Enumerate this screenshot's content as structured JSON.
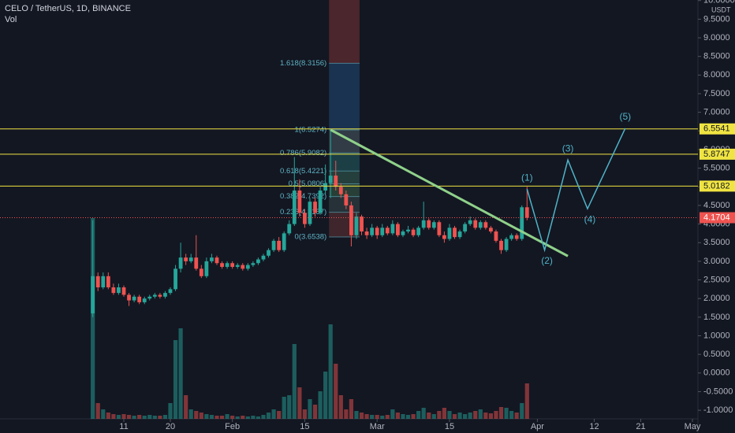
{
  "chart_data": {
    "type": "candlestick",
    "title": "CELO / TetherUS, 1D, BINANCE",
    "subtitle": "Vol",
    "y_axis_label": "USDT",
    "xlim": [
      -13.95,
      121.06
    ],
    "ylim": [
      -1.23,
      10.015
    ],
    "y2lim": [
      0,
      532
    ],
    "grid": false,
    "up_color": "#26a69a",
    "down_color": "#ef5350",
    "xticks": [
      {
        "value": 10,
        "label": "11"
      },
      {
        "value": 19,
        "label": "20"
      },
      {
        "value": 31,
        "label": "Feb"
      },
      {
        "value": 45,
        "label": "15"
      },
      {
        "value": 59,
        "label": "Mar"
      },
      {
        "value": 73,
        "label": "15"
      },
      {
        "value": 90,
        "label": "Apr"
      },
      {
        "value": 101,
        "label": "12"
      },
      {
        "value": 110,
        "label": "21"
      },
      {
        "value": 120,
        "label": "May"
      }
    ],
    "yticks": [
      {
        "value": -1,
        "label": "-1.0000"
      },
      {
        "value": -0.5,
        "label": "-0.5000"
      },
      {
        "value": 0,
        "label": "0.0000"
      },
      {
        "value": 0.5,
        "label": "0.5000"
      },
      {
        "value": 1,
        "label": "1.0000"
      },
      {
        "value": 1.5,
        "label": "1.5000"
      },
      {
        "value": 2,
        "label": "2.0000"
      },
      {
        "value": 2.5,
        "label": "2.5000"
      },
      {
        "value": 3,
        "label": "3.0000"
      },
      {
        "value": 3.5,
        "label": "3.5000"
      },
      {
        "value": 4,
        "label": "4.0000"
      },
      {
        "value": 4.5,
        "label": "4.5000"
      },
      {
        "value": 5,
        "label": "5.0000"
      },
      {
        "value": 5.5,
        "label": "5.5000"
      },
      {
        "value": 6,
        "label": "6.0000"
      },
      {
        "value": 6.5,
        "label": "6.5000"
      },
      {
        "value": 7,
        "label": "7.0000"
      },
      {
        "value": 7.5,
        "label": "7.5000"
      },
      {
        "value": 8,
        "label": "8.0000"
      },
      {
        "value": 8.5,
        "label": "8.5000"
      },
      {
        "value": 9,
        "label": "9.0000"
      },
      {
        "value": 9.5,
        "label": "9.5000"
      },
      {
        "value": 10,
        "label": "10.0000"
      }
    ],
    "x": [
      4,
      5,
      6,
      7,
      8,
      9,
      10,
      11,
      12,
      13,
      14,
      15,
      16,
      17,
      18,
      19,
      20,
      21,
      22,
      23,
      24,
      25,
      26,
      27,
      28,
      29,
      30,
      31,
      32,
      33,
      34,
      35,
      36,
      37,
      38,
      39,
      40,
      41,
      42,
      43,
      44,
      45,
      46,
      47,
      48,
      49,
      50,
      51,
      52,
      53,
      54,
      55,
      56,
      57,
      58,
      59,
      60,
      61,
      62,
      63,
      64,
      65,
      66,
      67,
      68,
      69,
      70,
      71,
      72,
      73,
      74,
      75,
      76,
      77,
      78,
      79,
      80,
      81,
      82,
      83,
      84,
      85,
      86,
      87,
      88
    ],
    "open": [
      1.6,
      2.6,
      2.3,
      2.6,
      2.3,
      2.15,
      2.3,
      2.1,
      1.95,
      2.05,
      1.9,
      2.0,
      2.05,
      2.1,
      2.05,
      2.15,
      2.25,
      2.8,
      3.1,
      3.0,
      3.1,
      2.8,
      2.6,
      3.0,
      3.1,
      2.95,
      2.85,
      2.95,
      2.85,
      2.9,
      2.8,
      2.9,
      2.95,
      3.05,
      3.15,
      3.3,
      3.55,
      3.3,
      3.75,
      4.0,
      4.9,
      4.3,
      4.0,
      4.6,
      4.3,
      4.9,
      5.1,
      5.3,
      5.0,
      4.8,
      4.5,
      3.7,
      4.2,
      3.8,
      3.7,
      3.9,
      3.7,
      3.9,
      3.75,
      4.0,
      3.7,
      3.8,
      3.85,
      3.7,
      3.9,
      4.1,
      3.9,
      4.05,
      3.7,
      3.6,
      3.9,
      3.65,
      3.8,
      4.0,
      4.1,
      3.9,
      4.05,
      3.9,
      3.8,
      3.55,
      3.3,
      3.6,
      3.7,
      3.6,
      4.45
    ],
    "high": [
      4.1,
      2.7,
      2.7,
      2.7,
      2.4,
      2.4,
      2.35,
      2.15,
      2.1,
      2.1,
      2.05,
      2.1,
      2.15,
      2.15,
      2.2,
      2.3,
      2.9,
      3.5,
      3.2,
      3.2,
      3.7,
      2.9,
      3.1,
      3.2,
      3.15,
      3.0,
      3.0,
      3.0,
      2.95,
      2.95,
      2.95,
      3.0,
      3.1,
      3.2,
      3.35,
      3.6,
      3.65,
      3.8,
      4.1,
      5.8,
      5.2,
      4.4,
      4.7,
      4.7,
      5.0,
      5.6,
      6.53,
      5.7,
      5.1,
      4.9,
      4.6,
      4.3,
      4.25,
      3.9,
      4.0,
      3.95,
      4.0,
      3.95,
      4.1,
      4.05,
      3.85,
      3.95,
      3.9,
      3.95,
      4.6,
      4.15,
      4.1,
      4.1,
      3.8,
      4.0,
      3.95,
      3.85,
      4.05,
      4.2,
      4.15,
      4.1,
      4.1,
      3.95,
      3.85,
      3.6,
      3.65,
      3.75,
      3.75,
      4.5,
      5.0
    ],
    "low": [
      1.5,
      2.2,
      2.25,
      2.25,
      2.1,
      2.1,
      2.05,
      1.8,
      1.9,
      1.85,
      1.85,
      1.95,
      2.0,
      2.0,
      2.0,
      2.1,
      2.2,
      2.7,
      2.9,
      2.95,
      2.75,
      2.55,
      2.55,
      2.95,
      2.9,
      2.8,
      2.8,
      2.8,
      2.8,
      2.75,
      2.75,
      2.85,
      2.9,
      3.0,
      3.1,
      3.25,
      3.25,
      3.25,
      3.7,
      3.95,
      4.2,
      3.9,
      3.95,
      4.2,
      4.25,
      4.8,
      4.7,
      4.9,
      4.7,
      4.4,
      3.4,
      3.6,
      3.7,
      3.6,
      3.65,
      3.6,
      3.65,
      3.7,
      3.7,
      3.65,
      3.65,
      3.75,
      3.65,
      3.65,
      3.85,
      3.85,
      3.85,
      3.65,
      3.5,
      3.55,
      3.6,
      3.6,
      3.75,
      3.95,
      3.85,
      3.85,
      3.85,
      3.75,
      3.5,
      3.2,
      3.25,
      3.55,
      3.55,
      3.55,
      4.1
    ],
    "close": [
      2.6,
      2.3,
      2.6,
      2.3,
      2.15,
      2.3,
      2.1,
      1.95,
      2.05,
      1.9,
      2.0,
      2.05,
      2.1,
      2.05,
      2.15,
      2.25,
      2.8,
      3.1,
      3.0,
      3.1,
      2.8,
      2.6,
      3.0,
      3.1,
      2.95,
      2.85,
      2.95,
      2.85,
      2.9,
      2.8,
      2.9,
      2.95,
      3.05,
      3.15,
      3.3,
      3.55,
      3.3,
      3.75,
      4.0,
      4.9,
      4.3,
      4.0,
      4.6,
      4.3,
      4.9,
      5.1,
      5.3,
      5.0,
      4.8,
      4.5,
      3.7,
      4.2,
      3.8,
      3.7,
      3.9,
      3.7,
      3.9,
      3.75,
      4.0,
      3.7,
      3.8,
      3.85,
      3.7,
      3.9,
      4.1,
      3.9,
      4.05,
      3.7,
      3.6,
      3.9,
      3.65,
      3.8,
      4.0,
      4.1,
      3.9,
      4.05,
      3.9,
      3.8,
      3.55,
      3.3,
      3.6,
      3.7,
      3.6,
      4.45,
      4.1704
    ],
    "volume": [
      255,
      20,
      12,
      8,
      6,
      5,
      6,
      5,
      4,
      5,
      4,
      5,
      4,
      4,
      5,
      20,
      100,
      115,
      30,
      12,
      10,
      8,
      6,
      5,
      4,
      4,
      6,
      4,
      3,
      4,
      3,
      4,
      3,
      5,
      8,
      12,
      10,
      28,
      30,
      95,
      40,
      12,
      25,
      18,
      35,
      60,
      120,
      70,
      30,
      12,
      25,
      10,
      8,
      6,
      5,
      5,
      4,
      5,
      12,
      8,
      6,
      5,
      6,
      10,
      14,
      8,
      6,
      10,
      14,
      10,
      6,
      8,
      6,
      8,
      10,
      12,
      8,
      7,
      10,
      15,
      14,
      10,
      8,
      20,
      45
    ],
    "levels": [
      6.5541,
      5.8747,
      5.0182
    ],
    "level_color": "#f0e442",
    "last_price": 4.1704,
    "fib_x": [
      49.7,
      55.6
    ],
    "fib": [
      {
        "label": "1.618(8.3156)",
        "value": 8.3156,
        "color": "#5a2a30"
      },
      {
        "label": "1(6.5274)",
        "value": 6.5274,
        "color": "#1d3b5c"
      },
      {
        "label": "0.786(5.9082)",
        "value": 5.9082,
        "color": "#3a4650"
      },
      {
        "label": "0.618(5.4221)",
        "value": 5.4221,
        "color": "#1f4a50"
      },
      {
        "label": "0.5(5.0806)",
        "value": 5.0806,
        "color": "#2a4a45"
      },
      {
        "label": "0.382(4.7392)",
        "value": 4.7392,
        "color": "#2d4a3c"
      },
      {
        "label": "0.236(4.3157)",
        "value": 4.3157,
        "color": "#2c3a3e"
      },
      {
        "label": "0(3.6538)",
        "value": 3.6538,
        "color": "#4a2a30"
      }
    ],
    "trendline": {
      "x": [
        50,
        95.9
      ],
      "y": [
        6.53,
        3.14
      ],
      "color": "#8fd18a"
    },
    "wave": {
      "labels": [
        "(1)",
        "(2)",
        "(3)",
        "(4)",
        "(5)"
      ],
      "x": [
        88,
        91.4,
        95.9,
        99.7,
        107
      ],
      "y": [
        4.94,
        3.3,
        5.72,
        4.41,
        6.57
      ],
      "color": "#4fb3c8"
    }
  }
}
